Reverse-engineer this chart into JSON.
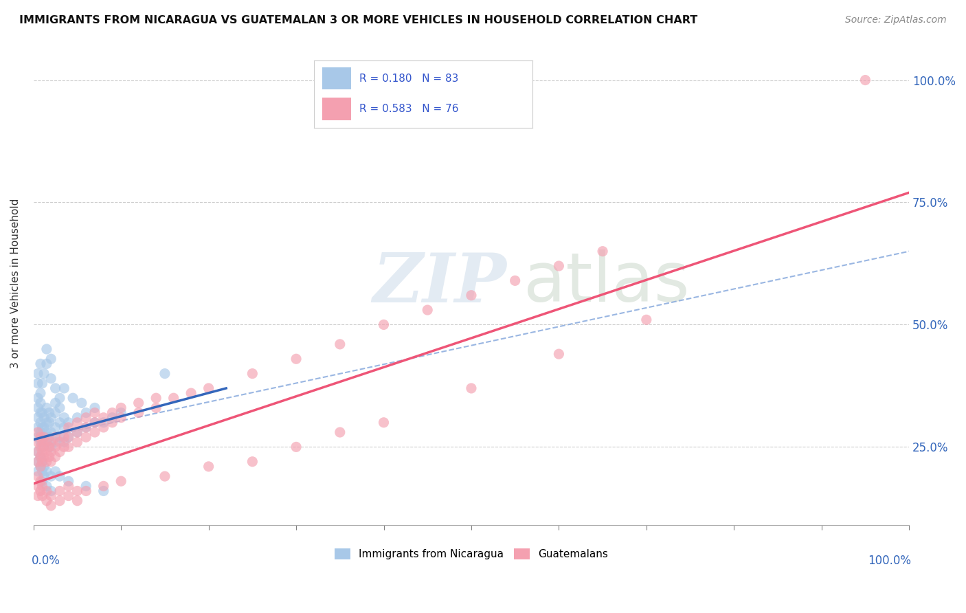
{
  "title": "IMMIGRANTS FROM NICARAGUA VS GUATEMALAN 3 OR MORE VEHICLES IN HOUSEHOLD CORRELATION CHART",
  "source": "Source: ZipAtlas.com",
  "ylabel": "3 or more Vehicles in Household",
  "blue_color": "#a8c8e8",
  "pink_color": "#f4a0b0",
  "blue_line_color": "#3366bb",
  "pink_line_color": "#ee5577",
  "blue_dash_color": "#88aadd",
  "watermark_color": "#c8d8e8",
  "ytick_labels": [
    "25.0%",
    "50.0%",
    "75.0%",
    "100.0%"
  ],
  "ytick_values": [
    0.25,
    0.5,
    0.75,
    1.0
  ],
  "blue_scatter": [
    [
      0.005,
      0.27
    ],
    [
      0.005,
      0.29
    ],
    [
      0.005,
      0.31
    ],
    [
      0.005,
      0.33
    ],
    [
      0.008,
      0.26
    ],
    [
      0.008,
      0.28
    ],
    [
      0.008,
      0.3
    ],
    [
      0.008,
      0.32
    ],
    [
      0.01,
      0.25
    ],
    [
      0.01,
      0.27
    ],
    [
      0.01,
      0.29
    ],
    [
      0.01,
      0.32
    ],
    [
      0.012,
      0.27
    ],
    [
      0.012,
      0.29
    ],
    [
      0.012,
      0.31
    ],
    [
      0.015,
      0.26
    ],
    [
      0.015,
      0.28
    ],
    [
      0.015,
      0.3
    ],
    [
      0.015,
      0.33
    ],
    [
      0.018,
      0.27
    ],
    [
      0.018,
      0.3
    ],
    [
      0.018,
      0.32
    ],
    [
      0.02,
      0.25
    ],
    [
      0.02,
      0.28
    ],
    [
      0.02,
      0.31
    ],
    [
      0.025,
      0.26
    ],
    [
      0.025,
      0.29
    ],
    [
      0.025,
      0.32
    ],
    [
      0.03,
      0.27
    ],
    [
      0.03,
      0.3
    ],
    [
      0.03,
      0.33
    ],
    [
      0.035,
      0.26
    ],
    [
      0.035,
      0.29
    ],
    [
      0.035,
      0.31
    ],
    [
      0.04,
      0.27
    ],
    [
      0.04,
      0.3
    ],
    [
      0.05,
      0.28
    ],
    [
      0.05,
      0.31
    ],
    [
      0.06,
      0.29
    ],
    [
      0.06,
      0.32
    ],
    [
      0.07,
      0.3
    ],
    [
      0.07,
      0.33
    ],
    [
      0.005,
      0.24
    ],
    [
      0.005,
      0.22
    ],
    [
      0.005,
      0.2
    ],
    [
      0.008,
      0.23
    ],
    [
      0.008,
      0.21
    ],
    [
      0.01,
      0.22
    ],
    [
      0.01,
      0.2
    ],
    [
      0.01,
      0.18
    ],
    [
      0.012,
      0.21
    ],
    [
      0.012,
      0.19
    ],
    [
      0.015,
      0.2
    ],
    [
      0.015,
      0.17
    ],
    [
      0.02,
      0.19
    ],
    [
      0.02,
      0.16
    ],
    [
      0.025,
      0.2
    ],
    [
      0.03,
      0.19
    ],
    [
      0.008,
      0.36
    ],
    [
      0.01,
      0.38
    ],
    [
      0.012,
      0.4
    ],
    [
      0.015,
      0.42
    ],
    [
      0.02,
      0.39
    ],
    [
      0.025,
      0.37
    ],
    [
      0.005,
      0.38
    ],
    [
      0.005,
      0.4
    ],
    [
      0.008,
      0.42
    ],
    [
      0.015,
      0.45
    ],
    [
      0.02,
      0.43
    ],
    [
      0.15,
      0.4
    ],
    [
      0.04,
      0.18
    ],
    [
      0.06,
      0.17
    ],
    [
      0.08,
      0.16
    ],
    [
      0.035,
      0.37
    ],
    [
      0.045,
      0.35
    ],
    [
      0.055,
      0.34
    ],
    [
      0.08,
      0.3
    ],
    [
      0.09,
      0.31
    ],
    [
      0.1,
      0.32
    ],
    [
      0.005,
      0.35
    ],
    [
      0.008,
      0.34
    ],
    [
      0.025,
      0.34
    ],
    [
      0.03,
      0.35
    ]
  ],
  "pink_scatter": [
    [
      0.005,
      0.22
    ],
    [
      0.005,
      0.24
    ],
    [
      0.005,
      0.26
    ],
    [
      0.005,
      0.28
    ],
    [
      0.008,
      0.21
    ],
    [
      0.008,
      0.23
    ],
    [
      0.008,
      0.25
    ],
    [
      0.008,
      0.27
    ],
    [
      0.01,
      0.22
    ],
    [
      0.01,
      0.24
    ],
    [
      0.01,
      0.26
    ],
    [
      0.012,
      0.23
    ],
    [
      0.012,
      0.25
    ],
    [
      0.012,
      0.27
    ],
    [
      0.015,
      0.22
    ],
    [
      0.015,
      0.24
    ],
    [
      0.015,
      0.26
    ],
    [
      0.018,
      0.23
    ],
    [
      0.018,
      0.25
    ],
    [
      0.02,
      0.22
    ],
    [
      0.02,
      0.24
    ],
    [
      0.02,
      0.26
    ],
    [
      0.025,
      0.23
    ],
    [
      0.025,
      0.25
    ],
    [
      0.025,
      0.27
    ],
    [
      0.03,
      0.24
    ],
    [
      0.03,
      0.26
    ],
    [
      0.035,
      0.25
    ],
    [
      0.035,
      0.27
    ],
    [
      0.04,
      0.25
    ],
    [
      0.04,
      0.27
    ],
    [
      0.04,
      0.29
    ],
    [
      0.05,
      0.26
    ],
    [
      0.05,
      0.28
    ],
    [
      0.05,
      0.3
    ],
    [
      0.06,
      0.27
    ],
    [
      0.06,
      0.29
    ],
    [
      0.06,
      0.31
    ],
    [
      0.07,
      0.28
    ],
    [
      0.07,
      0.3
    ],
    [
      0.07,
      0.32
    ],
    [
      0.08,
      0.29
    ],
    [
      0.08,
      0.31
    ],
    [
      0.09,
      0.3
    ],
    [
      0.09,
      0.32
    ],
    [
      0.1,
      0.31
    ],
    [
      0.1,
      0.33
    ],
    [
      0.12,
      0.32
    ],
    [
      0.12,
      0.34
    ],
    [
      0.14,
      0.33
    ],
    [
      0.14,
      0.35
    ],
    [
      0.16,
      0.35
    ],
    [
      0.18,
      0.36
    ],
    [
      0.2,
      0.37
    ],
    [
      0.25,
      0.4
    ],
    [
      0.3,
      0.43
    ],
    [
      0.35,
      0.46
    ],
    [
      0.4,
      0.5
    ],
    [
      0.45,
      0.53
    ],
    [
      0.5,
      0.56
    ],
    [
      0.55,
      0.59
    ],
    [
      0.6,
      0.62
    ],
    [
      0.65,
      0.65
    ],
    [
      0.005,
      0.19
    ],
    [
      0.005,
      0.17
    ],
    [
      0.005,
      0.15
    ],
    [
      0.008,
      0.18
    ],
    [
      0.008,
      0.16
    ],
    [
      0.01,
      0.17
    ],
    [
      0.01,
      0.15
    ],
    [
      0.015,
      0.16
    ],
    [
      0.015,
      0.14
    ],
    [
      0.02,
      0.15
    ],
    [
      0.02,
      0.13
    ],
    [
      0.03,
      0.16
    ],
    [
      0.03,
      0.14
    ],
    [
      0.04,
      0.17
    ],
    [
      0.04,
      0.15
    ],
    [
      0.05,
      0.16
    ],
    [
      0.05,
      0.14
    ],
    [
      0.06,
      0.16
    ],
    [
      0.08,
      0.17
    ],
    [
      0.1,
      0.18
    ],
    [
      0.15,
      0.19
    ],
    [
      0.2,
      0.21
    ],
    [
      0.25,
      0.22
    ],
    [
      0.3,
      0.25
    ],
    [
      0.35,
      0.28
    ],
    [
      0.4,
      0.3
    ],
    [
      0.5,
      0.37
    ],
    [
      0.6,
      0.44
    ],
    [
      0.7,
      0.51
    ],
    [
      0.95,
      1.0
    ]
  ],
  "blue_line_x": [
    0.0,
    0.22
  ],
  "blue_line_y_start": 0.265,
  "blue_line_y_end": 0.37,
  "pink_line_x": [
    0.0,
    1.0
  ],
  "pink_line_y_start": 0.175,
  "pink_line_y_end": 0.77,
  "dash_line_x": [
    0.0,
    1.0
  ],
  "dash_line_y_start": 0.265,
  "dash_line_y_end": 0.65,
  "xlim": [
    0.0,
    1.0
  ],
  "ylim": [
    0.09,
    1.08
  ],
  "xtick_positions": [
    0.0,
    0.1,
    0.2,
    0.3,
    0.4,
    0.5,
    0.6,
    0.7,
    0.8,
    0.9,
    1.0
  ]
}
